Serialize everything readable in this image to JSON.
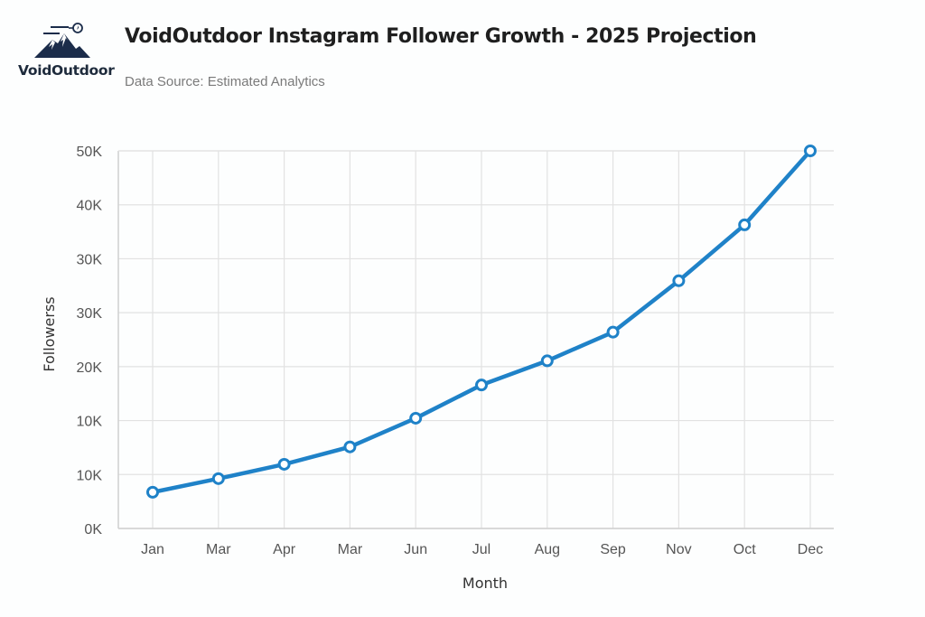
{
  "header": {
    "logo_text": "VoidOutdoor",
    "title": "VoidOutdoor Instagram Follower Growth - 2025 Projection",
    "subtitle": "Data Source: Estimated Analytics"
  },
  "colors": {
    "line": "#1f82c8",
    "grid": "#e2e2e2",
    "axis": "#cfcfcf",
    "logo_navy": "#1b2c4a"
  },
  "chart_data": {
    "type": "line",
    "title": "VoidOutdoor Instagram Follower Growth - 2025 Projection",
    "subtitle": "Data Source: Estimated Analytics",
    "xlabel": "Month",
    "ylabel": "Followerss",
    "categories": [
      "Jan",
      "Mar",
      "Apr",
      "Mar",
      "Jun",
      "Jul",
      "Aug",
      "Sep",
      "Nov",
      "Oct",
      "Dec"
    ],
    "series": [
      {
        "name": "Followers",
        "values": [
          4800,
          6600,
          8500,
          10800,
          14600,
          19000,
          22200,
          26000,
          32800,
          40200,
          50000
        ]
      }
    ],
    "ylim": [
      0,
      50000
    ],
    "y_tick_labels": [
      "0K",
      "10K",
      "10K",
      "20K",
      "30K",
      "30K",
      "40K",
      "50K"
    ],
    "grid": true,
    "legend": "none",
    "markers": "hollow-circle"
  }
}
